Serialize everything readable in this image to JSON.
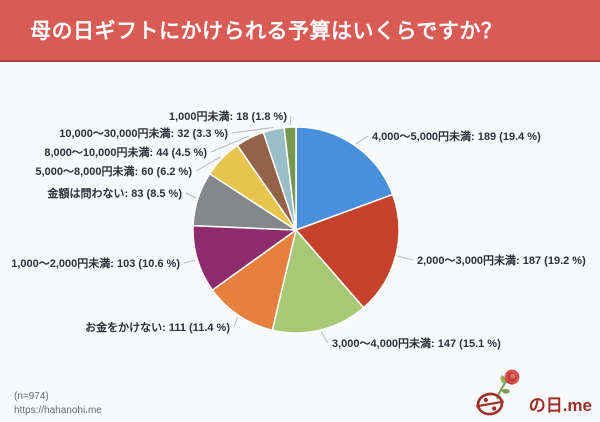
{
  "header": {
    "title": "母の日ギフトにかけられる予算はいくらですか？"
  },
  "colors": {
    "page_bg": "#f7f9fb",
    "header_bg": "#d95b56",
    "header_border": "#ae3f3b",
    "label_color": "#30303a",
    "leader_line": "#b9b9bd",
    "muted_color": "#686870",
    "logo_color": "#9e2f28"
  },
  "chart_data": {
    "type": "pie",
    "title": "母の日ギフトにかけられる予算はいくらですか？",
    "sample_size_label": "(n=974)",
    "total_responses": 974,
    "legend_position": "outside-callouts",
    "label_format": "{label}: {value} ({pct} %)",
    "start_angle": "12-oclock-clockwise",
    "slices": [
      {
        "label": "4,000～5,000円未満",
        "value": 189,
        "pct": "19.4",
        "color": "#4890de"
      },
      {
        "label": "2,000～3,000円未満",
        "value": 187,
        "pct": "19.2",
        "color": "#c5432c"
      },
      {
        "label": "3,000～4,000円未満",
        "value": 147,
        "pct": "15.1",
        "color": "#a7c874"
      },
      {
        "label": "お金をかけない",
        "value": 111,
        "pct": "11.4",
        "color": "#e7803e"
      },
      {
        "label": "1,000～2,000円未満",
        "value": 103,
        "pct": "10.6",
        "color": "#8e2d6e"
      },
      {
        "label": "金額は問わない",
        "value": 83,
        "pct": "8.5",
        "color": "#85878a"
      },
      {
        "label": "5,000～8,000円未満",
        "value": 60,
        "pct": "6.2",
        "color": "#e6c44d"
      },
      {
        "label": "8,000～10,000円未満",
        "value": 44,
        "pct": "4.5",
        "color": "#946248"
      },
      {
        "label": "10,000～30,000円未満",
        "value": 32,
        "pct": "3.3",
        "color": "#9abec8"
      },
      {
        "label": "1,000円未満",
        "value": 18,
        "pct": "1.8",
        "color": "#7a9650"
      }
    ]
  },
  "footer": {
    "sample_label": "(n=974)",
    "url": "https://hahanohi.me",
    "logo_symbol": "母",
    "logo_text": "の日.me"
  }
}
